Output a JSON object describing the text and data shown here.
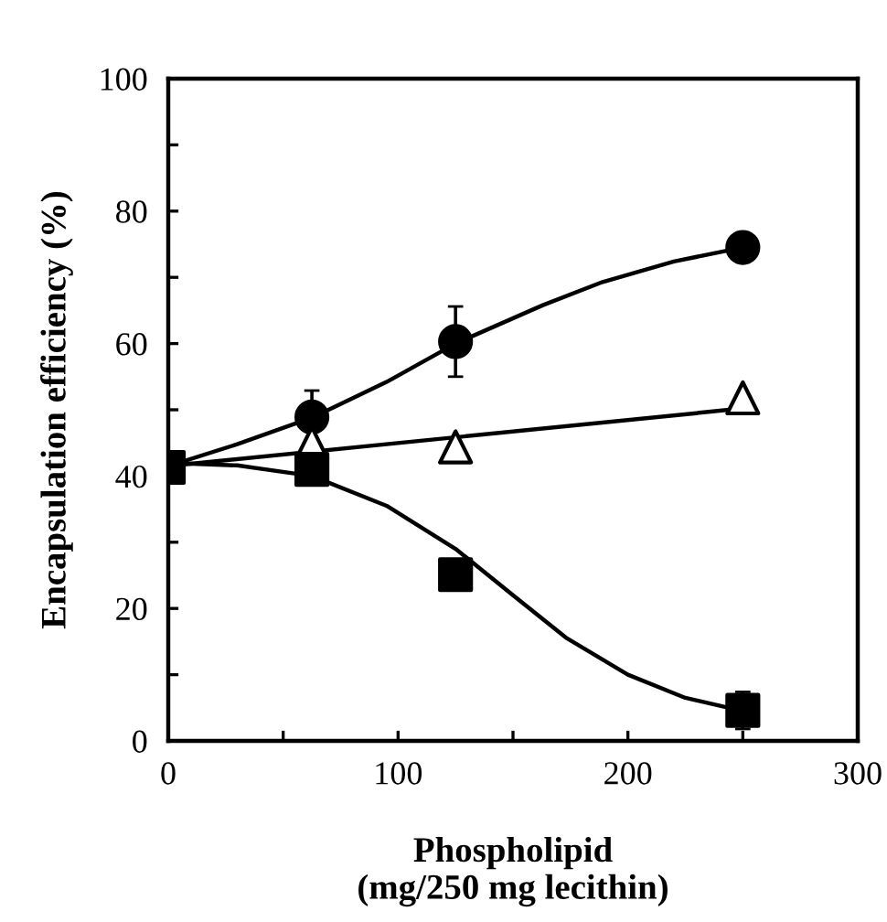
{
  "chart_data": {
    "type": "scatter",
    "xlabel": "Phospholipid\n(mg/250 mg lecithin)",
    "ylabel": "Encapsulation efficiency (%)",
    "xlim": [
      0,
      300
    ],
    "ylim": [
      0,
      100
    ],
    "xticks": [
      0,
      {
        "value": 50,
        "label": null
      },
      100,
      {
        "value": 150,
        "label": null
      },
      200,
      {
        "value": 250,
        "label": null
      },
      300
    ],
    "yticks": [
      0,
      {
        "value": 10,
        "label": null
      },
      20,
      {
        "value": 30,
        "label": null
      },
      40,
      {
        "value": 50,
        "label": null
      },
      60,
      {
        "value": 70,
        "label": null
      },
      80,
      {
        "value": 90,
        "label": null
      },
      100
    ],
    "grid": false,
    "legend": false,
    "series": [
      {
        "type": "line",
        "color": "#000000",
        "marker": "none",
        "x": [
          0,
          30,
          62.5,
          95,
          125,
          163,
          189,
          220,
          250
        ],
        "values": [
          41.5,
          44.8,
          48.8,
          54.2,
          60,
          65.8,
          69.3,
          72.4,
          74.5
        ]
      },
      {
        "type": "line",
        "color": "#000000",
        "marker": "none",
        "x": [
          0,
          250
        ],
        "values": [
          41.5,
          50.2
        ]
      },
      {
        "type": "line",
        "color": "#000000",
        "marker": "none",
        "x": [
          0,
          30,
          62.5,
          95,
          125,
          150,
          173,
          200,
          225,
          250
        ],
        "values": [
          42,
          41.6,
          40,
          35.5,
          29,
          22,
          15.6,
          10,
          6.5,
          4.5
        ]
      },
      {
        "color": "#000000",
        "marker": "circle",
        "x": [
          62.5,
          125,
          250
        ],
        "values": [
          48.9,
          60.3,
          74.5
        ],
        "errors": [
          4,
          5.3,
          null
        ]
      },
      {
        "color": "#ffffff",
        "marker": "triangle",
        "x": [
          62.5,
          125,
          250
        ],
        "values": [
          45,
          44.4,
          51.8
        ]
      },
      {
        "color": "#000000",
        "marker": "square",
        "x": [
          0,
          62.5,
          125,
          250
        ],
        "values": [
          41.3,
          41,
          25.1,
          4.6
        ],
        "errors": [
          null,
          null,
          null,
          2.8
        ]
      }
    ]
  }
}
